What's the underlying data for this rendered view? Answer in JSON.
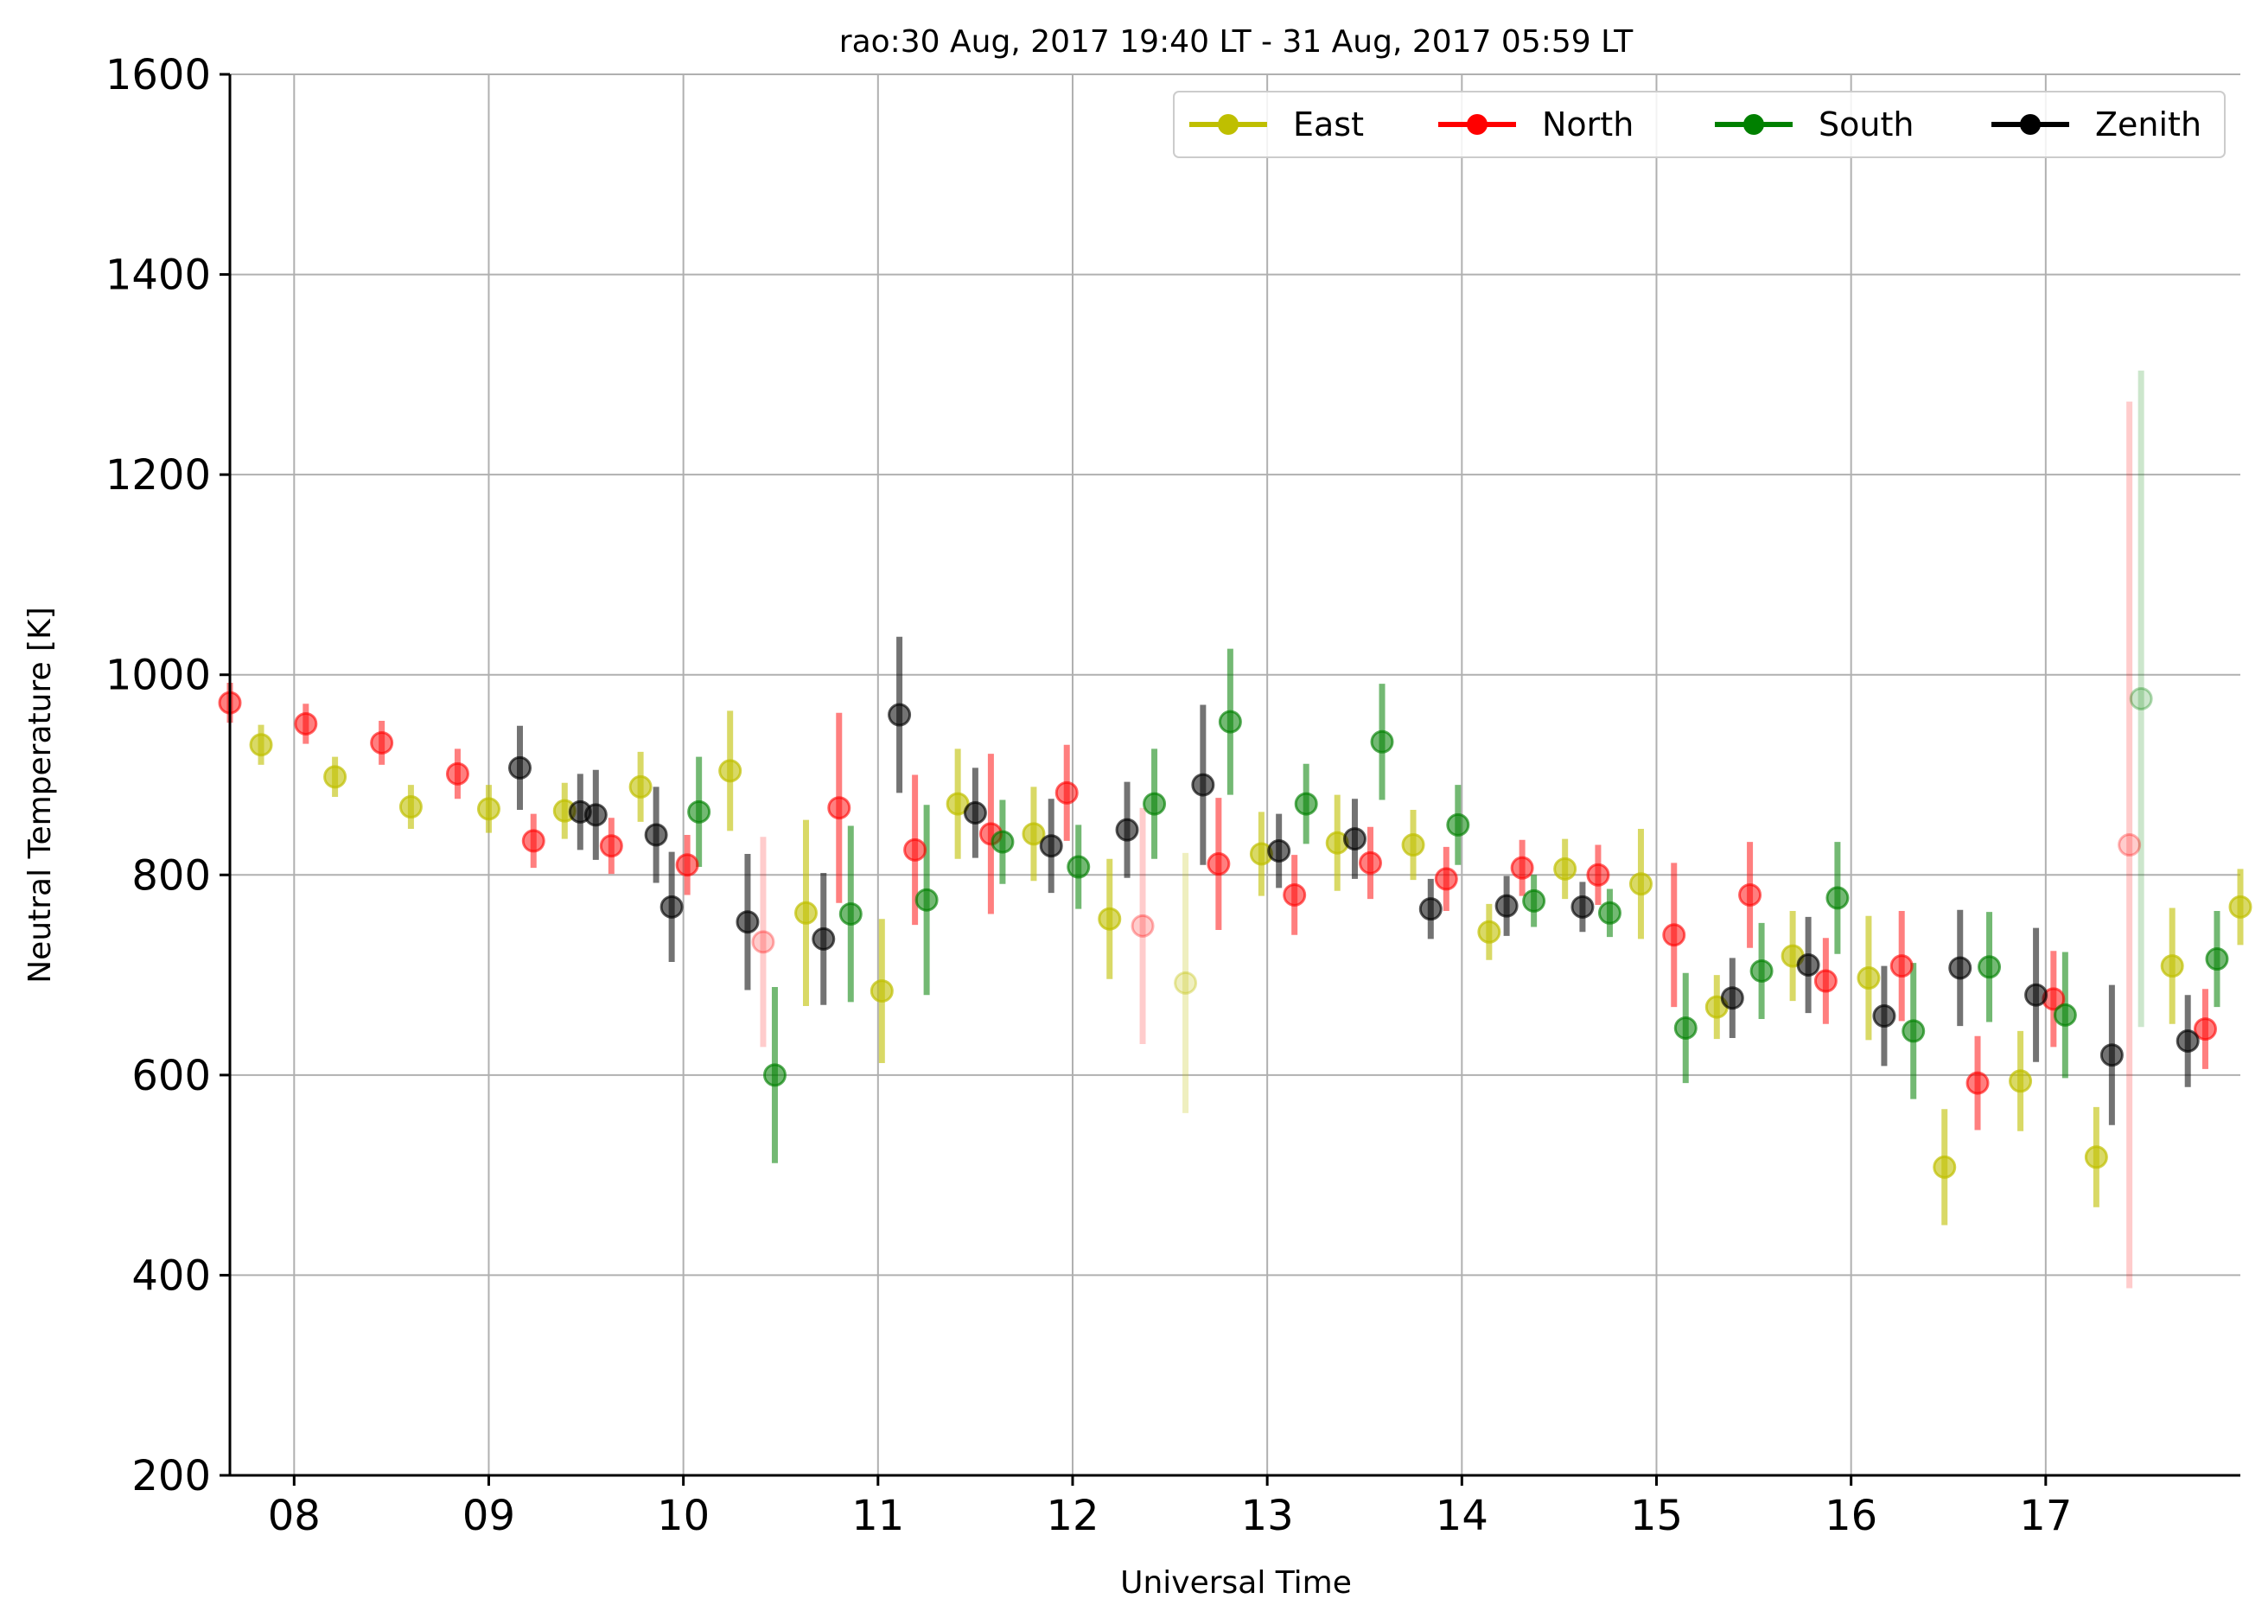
{
  "chart_data": {
    "type": "scatter",
    "title": "rao:30 Aug, 2017 19:40 LT - 31 Aug, 2017 05:59 LT",
    "xlabel": "Universal Time",
    "ylabel": "Neutral Temperature [K]",
    "xlim": [
      7.67,
      18.0
    ],
    "ylim": [
      200,
      1600
    ],
    "x_ticks": [
      {
        "value": 8,
        "label": "08"
      },
      {
        "value": 9,
        "label": "09"
      },
      {
        "value": 10,
        "label": "10"
      },
      {
        "value": 11,
        "label": "11"
      },
      {
        "value": 12,
        "label": "12"
      },
      {
        "value": 13,
        "label": "13"
      },
      {
        "value": 14,
        "label": "14"
      },
      {
        "value": 15,
        "label": "15"
      },
      {
        "value": 16,
        "label": "16"
      },
      {
        "value": 17,
        "label": "17"
      }
    ],
    "y_ticks": [
      200,
      400,
      600,
      800,
      1000,
      1200,
      1400,
      1600
    ],
    "grid": true,
    "legend_position": "top-right",
    "series": [
      {
        "name": "East",
        "color": "#bfbf00",
        "points": [
          {
            "x": 7.83,
            "y": 930,
            "err": 20,
            "alpha": 0.6
          },
          {
            "x": 8.21,
            "y": 898,
            "err": 20,
            "alpha": 0.6
          },
          {
            "x": 8.6,
            "y": 868,
            "err": 22,
            "alpha": 0.6
          },
          {
            "x": 9.0,
            "y": 866,
            "err": 24,
            "alpha": 0.6
          },
          {
            "x": 9.39,
            "y": 864,
            "err": 28,
            "alpha": 0.6
          },
          {
            "x": 9.78,
            "y": 888,
            "err": 35,
            "alpha": 0.6
          },
          {
            "x": 10.24,
            "y": 904,
            "err": 60,
            "alpha": 0.6
          },
          {
            "x": 10.63,
            "y": 762,
            "err": 93,
            "alpha": 0.6
          },
          {
            "x": 11.02,
            "y": 684,
            "err": 72,
            "alpha": 0.6
          },
          {
            "x": 11.41,
            "y": 871,
            "err": 55,
            "alpha": 0.6
          },
          {
            "x": 11.8,
            "y": 841,
            "err": 47,
            "alpha": 0.6
          },
          {
            "x": 12.19,
            "y": 756,
            "err": 60,
            "alpha": 0.6
          },
          {
            "x": 12.58,
            "y": 692,
            "err": 130,
            "alpha": 0.25
          },
          {
            "x": 12.97,
            "y": 821,
            "err": 42,
            "alpha": 0.6
          },
          {
            "x": 13.36,
            "y": 832,
            "err": 48,
            "alpha": 0.6
          },
          {
            "x": 13.75,
            "y": 830,
            "err": 35,
            "alpha": 0.6
          },
          {
            "x": 14.14,
            "y": 743,
            "err": 28,
            "alpha": 0.6
          },
          {
            "x": 14.53,
            "y": 806,
            "err": 30,
            "alpha": 0.6
          },
          {
            "x": 14.92,
            "y": 791,
            "err": 55,
            "alpha": 0.6
          },
          {
            "x": 15.31,
            "y": 668,
            "err": 32,
            "alpha": 0.6
          },
          {
            "x": 15.7,
            "y": 719,
            "err": 45,
            "alpha": 0.6
          },
          {
            "x": 16.09,
            "y": 697,
            "err": 62,
            "alpha": 0.6
          },
          {
            "x": 16.48,
            "y": 508,
            "err": 58,
            "alpha": 0.6
          },
          {
            "x": 16.87,
            "y": 594,
            "err": 50,
            "alpha": 0.6
          },
          {
            "x": 17.26,
            "y": 518,
            "err": 50,
            "alpha": 0.6
          },
          {
            "x": 17.65,
            "y": 709,
            "err": 58,
            "alpha": 0.6
          },
          {
            "x": 18.0,
            "y": 768,
            "err": 38,
            "alpha": 0.6
          }
        ]
      },
      {
        "name": "North",
        "color": "#ff0000",
        "points": [
          {
            "x": 7.67,
            "y": 972,
            "err": 20,
            "alpha": 0.5
          },
          {
            "x": 8.06,
            "y": 951,
            "err": 20,
            "alpha": 0.5
          },
          {
            "x": 8.45,
            "y": 932,
            "err": 22,
            "alpha": 0.5
          },
          {
            "x": 8.84,
            "y": 901,
            "err": 25,
            "alpha": 0.5
          },
          {
            "x": 9.23,
            "y": 834,
            "err": 27,
            "alpha": 0.5
          },
          {
            "x": 9.63,
            "y": 829,
            "err": 28,
            "alpha": 0.5
          },
          {
            "x": 10.02,
            "y": 810,
            "err": 30,
            "alpha": 0.5
          },
          {
            "x": 10.41,
            "y": 733,
            "err": 105,
            "alpha": 0.2
          },
          {
            "x": 10.8,
            "y": 867,
            "err": 95,
            "alpha": 0.5
          },
          {
            "x": 11.19,
            "y": 825,
            "err": 75,
            "alpha": 0.5
          },
          {
            "x": 11.58,
            "y": 841,
            "err": 80,
            "alpha": 0.5
          },
          {
            "x": 11.97,
            "y": 882,
            "err": 48,
            "alpha": 0.5
          },
          {
            "x": 12.36,
            "y": 749,
            "err": 118,
            "alpha": 0.2
          },
          {
            "x": 12.75,
            "y": 811,
            "err": 66,
            "alpha": 0.5
          },
          {
            "x": 13.14,
            "y": 780,
            "err": 40,
            "alpha": 0.5
          },
          {
            "x": 13.53,
            "y": 812,
            "err": 36,
            "alpha": 0.5
          },
          {
            "x": 13.92,
            "y": 796,
            "err": 32,
            "alpha": 0.5
          },
          {
            "x": 14.31,
            "y": 807,
            "err": 28,
            "alpha": 0.5
          },
          {
            "x": 14.7,
            "y": 800,
            "err": 30,
            "alpha": 0.5
          },
          {
            "x": 15.09,
            "y": 740,
            "err": 72,
            "alpha": 0.5
          },
          {
            "x": 15.48,
            "y": 780,
            "err": 53,
            "alpha": 0.5
          },
          {
            "x": 15.87,
            "y": 694,
            "err": 43,
            "alpha": 0.5
          },
          {
            "x": 16.26,
            "y": 709,
            "err": 55,
            "alpha": 0.5
          },
          {
            "x": 16.65,
            "y": 592,
            "err": 47,
            "alpha": 0.5
          },
          {
            "x": 17.04,
            "y": 676,
            "err": 48,
            "alpha": 0.5
          },
          {
            "x": 17.43,
            "y": 830,
            "err": 443,
            "alpha": 0.2
          },
          {
            "x": 17.82,
            "y": 646,
            "err": 40,
            "alpha": 0.5
          }
        ]
      },
      {
        "name": "South",
        "color": "#008000",
        "points": [
          {
            "x": 10.08,
            "y": 863,
            "err": 55,
            "alpha": 0.55
          },
          {
            "x": 10.47,
            "y": 600,
            "err": 88,
            "alpha": 0.55
          },
          {
            "x": 10.86,
            "y": 761,
            "err": 88,
            "alpha": 0.55
          },
          {
            "x": 11.25,
            "y": 775,
            "err": 95,
            "alpha": 0.55
          },
          {
            "x": 11.64,
            "y": 833,
            "err": 42,
            "alpha": 0.55
          },
          {
            "x": 12.03,
            "y": 808,
            "err": 42,
            "alpha": 0.55
          },
          {
            "x": 12.42,
            "y": 871,
            "err": 55,
            "alpha": 0.55
          },
          {
            "x": 12.81,
            "y": 953,
            "err": 73,
            "alpha": 0.55
          },
          {
            "x": 13.2,
            "y": 871,
            "err": 40,
            "alpha": 0.55
          },
          {
            "x": 13.59,
            "y": 933,
            "err": 58,
            "alpha": 0.55
          },
          {
            "x": 13.98,
            "y": 850,
            "err": 40,
            "alpha": 0.55
          },
          {
            "x": 14.37,
            "y": 774,
            "err": 26,
            "alpha": 0.55
          },
          {
            "x": 14.76,
            "y": 762,
            "err": 24,
            "alpha": 0.55
          },
          {
            "x": 15.15,
            "y": 647,
            "err": 55,
            "alpha": 0.55
          },
          {
            "x": 15.54,
            "y": 704,
            "err": 48,
            "alpha": 0.55
          },
          {
            "x": 15.93,
            "y": 777,
            "err": 56,
            "alpha": 0.55
          },
          {
            "x": 16.32,
            "y": 644,
            "err": 68,
            "alpha": 0.55
          },
          {
            "x": 16.71,
            "y": 708,
            "err": 55,
            "alpha": 0.55
          },
          {
            "x": 17.1,
            "y": 660,
            "err": 63,
            "alpha": 0.55
          },
          {
            "x": 17.49,
            "y": 976,
            "err": 328,
            "alpha": 0.2
          },
          {
            "x": 17.88,
            "y": 716,
            "err": 48,
            "alpha": 0.55
          }
        ]
      },
      {
        "name": "Zenith",
        "color": "#000000",
        "points": [
          {
            "x": 9.16,
            "y": 907,
            "err": 42,
            "alpha": 0.55
          },
          {
            "x": 9.47,
            "y": 863,
            "err": 38,
            "alpha": 0.55
          },
          {
            "x": 9.55,
            "y": 860,
            "err": 45,
            "alpha": 0.55
          },
          {
            "x": 9.86,
            "y": 840,
            "err": 48,
            "alpha": 0.55
          },
          {
            "x": 9.94,
            "y": 768,
            "err": 55,
            "alpha": 0.55
          },
          {
            "x": 10.33,
            "y": 753,
            "err": 68,
            "alpha": 0.55
          },
          {
            "x": 10.72,
            "y": 736,
            "err": 66,
            "alpha": 0.55
          },
          {
            "x": 11.11,
            "y": 960,
            "err": 78,
            "alpha": 0.55
          },
          {
            "x": 11.5,
            "y": 862,
            "err": 45,
            "alpha": 0.55
          },
          {
            "x": 11.89,
            "y": 829,
            "err": 47,
            "alpha": 0.55
          },
          {
            "x": 12.28,
            "y": 845,
            "err": 48,
            "alpha": 0.55
          },
          {
            "x": 12.67,
            "y": 890,
            "err": 80,
            "alpha": 0.55
          },
          {
            "x": 13.06,
            "y": 824,
            "err": 37,
            "alpha": 0.55
          },
          {
            "x": 13.45,
            "y": 836,
            "err": 40,
            "alpha": 0.55
          },
          {
            "x": 13.84,
            "y": 766,
            "err": 30,
            "alpha": 0.55
          },
          {
            "x": 14.23,
            "y": 769,
            "err": 30,
            "alpha": 0.55
          },
          {
            "x": 14.62,
            "y": 768,
            "err": 25,
            "alpha": 0.55
          },
          {
            "x": 15.39,
            "y": 677,
            "err": 40,
            "alpha": 0.55
          },
          {
            "x": 15.78,
            "y": 710,
            "err": 48,
            "alpha": 0.55
          },
          {
            "x": 16.17,
            "y": 659,
            "err": 50,
            "alpha": 0.55
          },
          {
            "x": 16.56,
            "y": 707,
            "err": 58,
            "alpha": 0.55
          },
          {
            "x": 16.95,
            "y": 680,
            "err": 67,
            "alpha": 0.55
          },
          {
            "x": 17.34,
            "y": 620,
            "err": 70,
            "alpha": 0.55
          },
          {
            "x": 17.73,
            "y": 634,
            "err": 46,
            "alpha": 0.55
          }
        ]
      }
    ]
  }
}
